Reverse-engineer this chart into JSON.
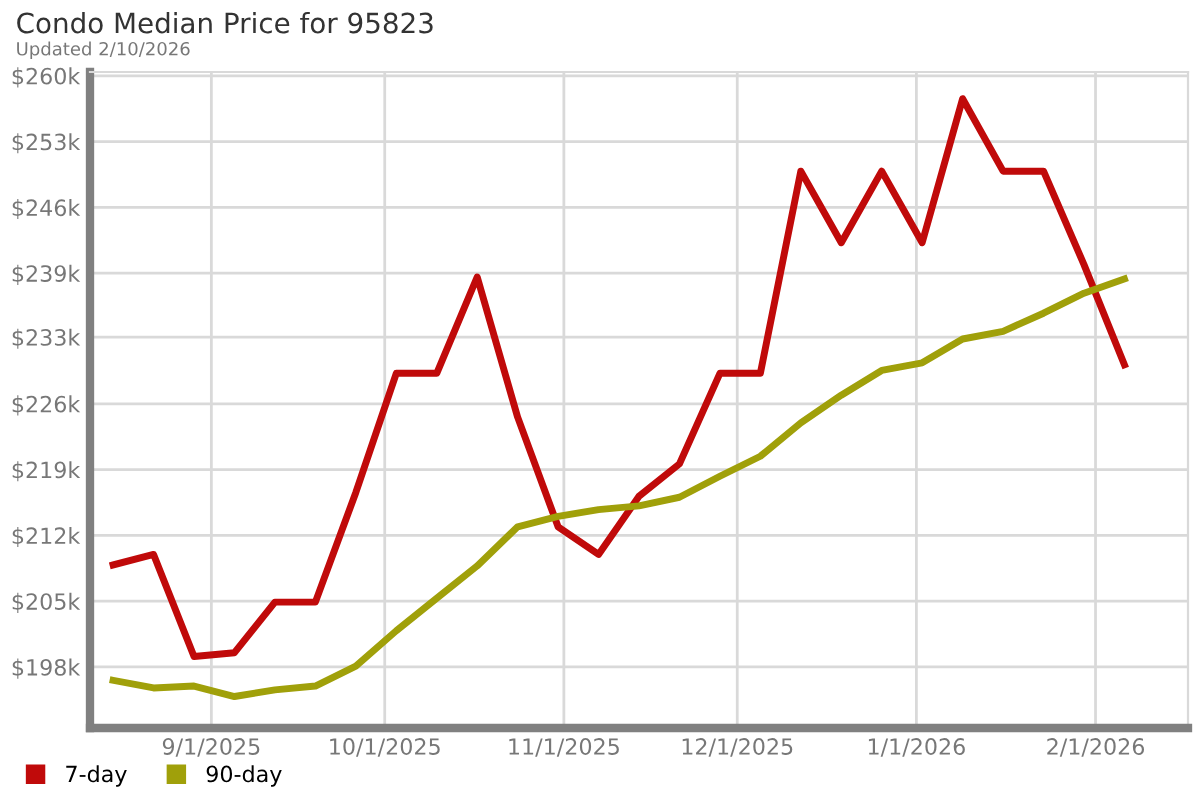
{
  "chart_data": {
    "type": "line",
    "title": "Condo Median Price for 95823",
    "subtitle": "Updated 2/10/2026",
    "x": [
      "2025-08-15",
      "2025-08-22",
      "2025-08-29",
      "2025-09-05",
      "2025-09-12",
      "2025-09-19",
      "2025-09-26",
      "2025-10-03",
      "2025-10-10",
      "2025-10-17",
      "2025-10-24",
      "2025-10-31",
      "2025-11-07",
      "2025-11-14",
      "2025-11-21",
      "2025-11-28",
      "2025-12-05",
      "2025-12-12",
      "2025-12-19",
      "2025-12-26",
      "2026-01-02",
      "2026-01-09",
      "2026-01-16",
      "2026-01-23",
      "2026-01-30",
      "2026-02-06"
    ],
    "series": [
      {
        "name": "7-day",
        "color": "#c00a0a",
        "values": [
          208.7,
          209.8,
          199.1,
          199.5,
          204.8,
          204.8,
          216.3,
          228.8,
          228.8,
          238.9,
          224.2,
          212.7,
          209.8,
          215.9,
          219.3,
          228.8,
          228.8,
          250.0,
          242.5,
          250.0,
          242.5,
          257.6,
          250.0,
          250.0,
          240.2,
          229.7
        ]
      },
      {
        "name": "90-day",
        "color": "#a0a00a",
        "values": [
          196.6,
          195.8,
          196.0,
          194.9,
          195.6,
          196.0,
          198.1,
          201.8,
          205.2,
          208.6,
          212.7,
          213.8,
          214.5,
          214.9,
          215.8,
          218.0,
          220.1,
          223.6,
          226.5,
          229.1,
          229.9,
          232.4,
          233.2,
          235.1,
          237.2,
          238.7
        ]
      }
    ],
    "xlim": [
      "2025-08-11",
      "2026-02-17"
    ],
    "xticks": [
      {
        "value": "2025-09-01",
        "label": "9/1/2025"
      },
      {
        "value": "2025-10-01",
        "label": "10/1/2025"
      },
      {
        "value": "2025-11-01",
        "label": "11/1/2025"
      },
      {
        "value": "2025-12-01",
        "label": "12/1/2025"
      },
      {
        "value": "2026-01-01",
        "label": "1/1/2026"
      },
      {
        "value": "2026-02-01",
        "label": "2/1/2026"
      }
    ],
    "ylim": [
      191.6,
      260.4
    ],
    "yticks": [
      {
        "value": 198,
        "label": "$198k"
      },
      {
        "value": 204.9,
        "label": "$205k"
      },
      {
        "value": 211.8,
        "label": "$212k"
      },
      {
        "value": 218.7,
        "label": "$219k"
      },
      {
        "value": 225.6,
        "label": "$226k"
      },
      {
        "value": 232.6,
        "label": "$233k"
      },
      {
        "value": 239.3,
        "label": "$239k"
      },
      {
        "value": 246.2,
        "label": "$246k"
      },
      {
        "value": 253.1,
        "label": "$253k"
      },
      {
        "value": 260,
        "label": "$260k"
      }
    ],
    "grid": true,
    "legend": "bottom left",
    "marker": "none",
    "line_style": "solid"
  }
}
